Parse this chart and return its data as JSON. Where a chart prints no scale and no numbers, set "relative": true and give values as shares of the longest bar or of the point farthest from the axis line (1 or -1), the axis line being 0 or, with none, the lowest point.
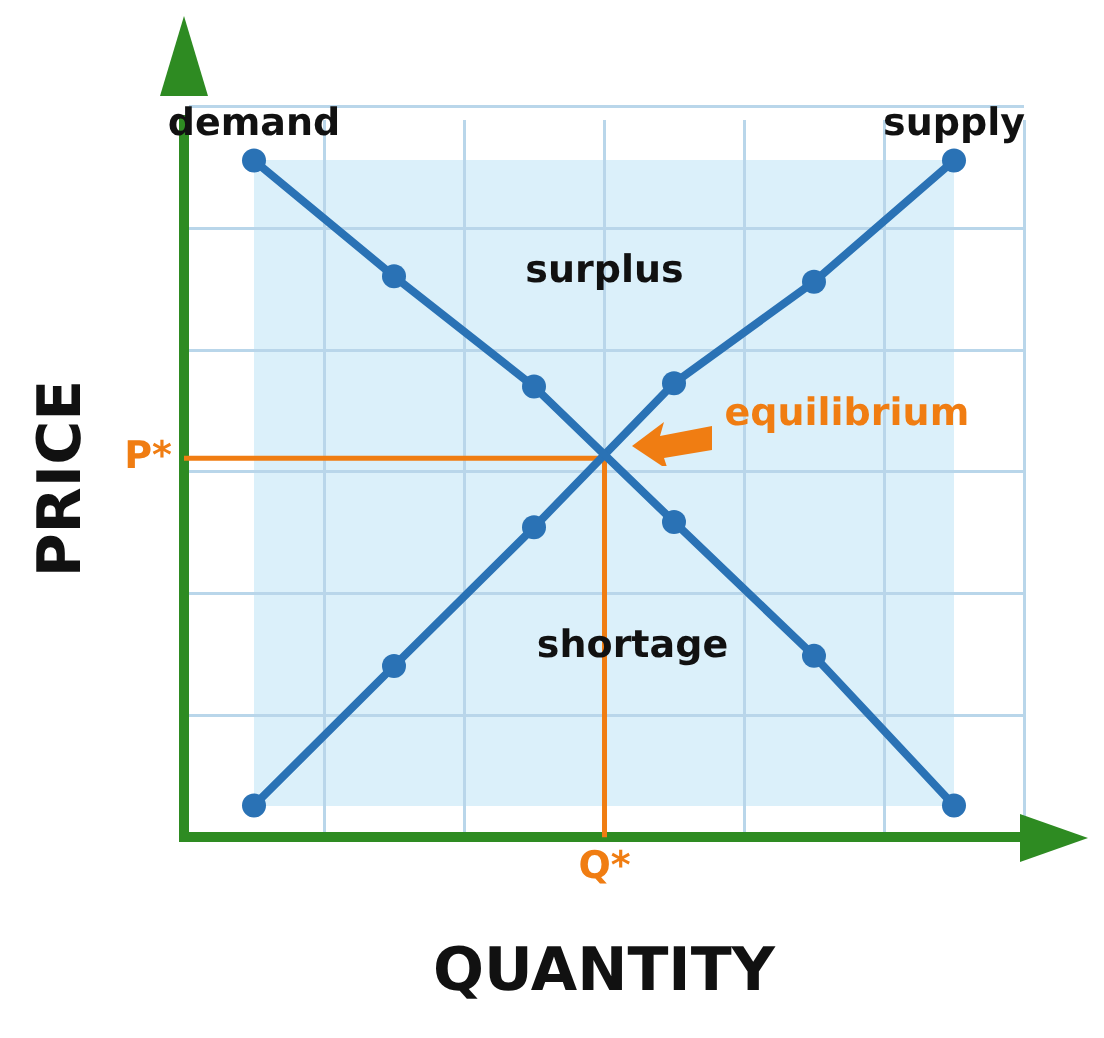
{
  "chart_data": {
    "type": "line",
    "relative": true,
    "xlabel": "QUANTITY",
    "ylabel": "PRICE",
    "categories": [
      null,
      null,
      null,
      null,
      null,
      null
    ],
    "grid": true,
    "legend": false,
    "marker": "circle",
    "line_style": "solid",
    "series": [
      {
        "name": "demand",
        "color": "#2a72b5",
        "values": [
          1,
          0.829,
          0.666,
          0.466,
          0.268,
          0.047
        ]
      },
      {
        "name": "supply",
        "color": "#2a72b5",
        "values": [
          0.047,
          0.253,
          0.458,
          0.671,
          0.821,
          1
        ]
      }
    ],
    "ref_lines": [
      {
        "axis": "y",
        "value": 0.56,
        "label": "P*",
        "color": "#f07d12"
      },
      {
        "axis": "x",
        "label": "Q*",
        "color": "#f07d12"
      }
    ],
    "annotations": [
      "surplus",
      "shortage",
      "equilibrium"
    ]
  }
}
